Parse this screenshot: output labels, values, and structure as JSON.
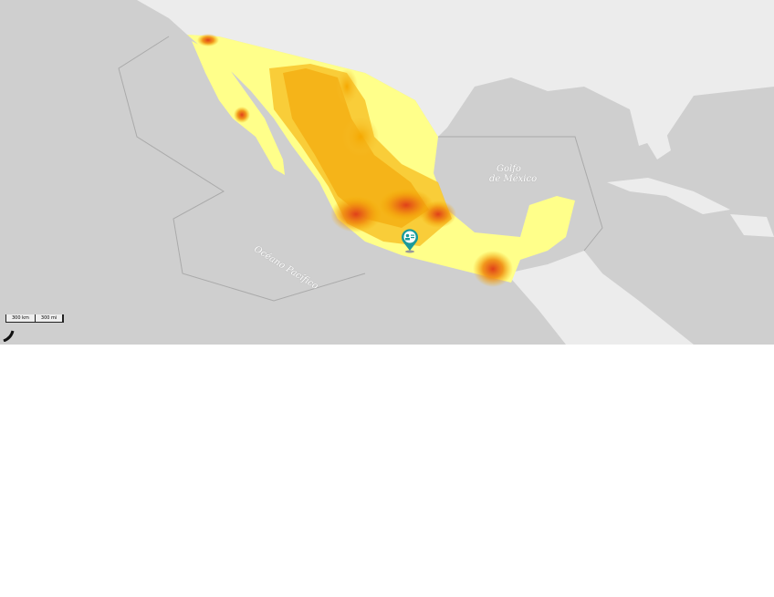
{
  "map": {
    "labels": {
      "gulf_line1": "Golfo",
      "gulf_line2": "de México",
      "pacific": "Océano Pacífico"
    },
    "scale": {
      "km": "300 km",
      "mi": "300 mi"
    },
    "colors": {
      "water": "#cfcfcf",
      "land": "#ececec",
      "heat_low": "#ffff80",
      "heat_mid": "#f5b000",
      "heat_high": "#e0401a",
      "marker": "#1a9a9a"
    },
    "marker_icon": "contact-card-pin-icon"
  }
}
